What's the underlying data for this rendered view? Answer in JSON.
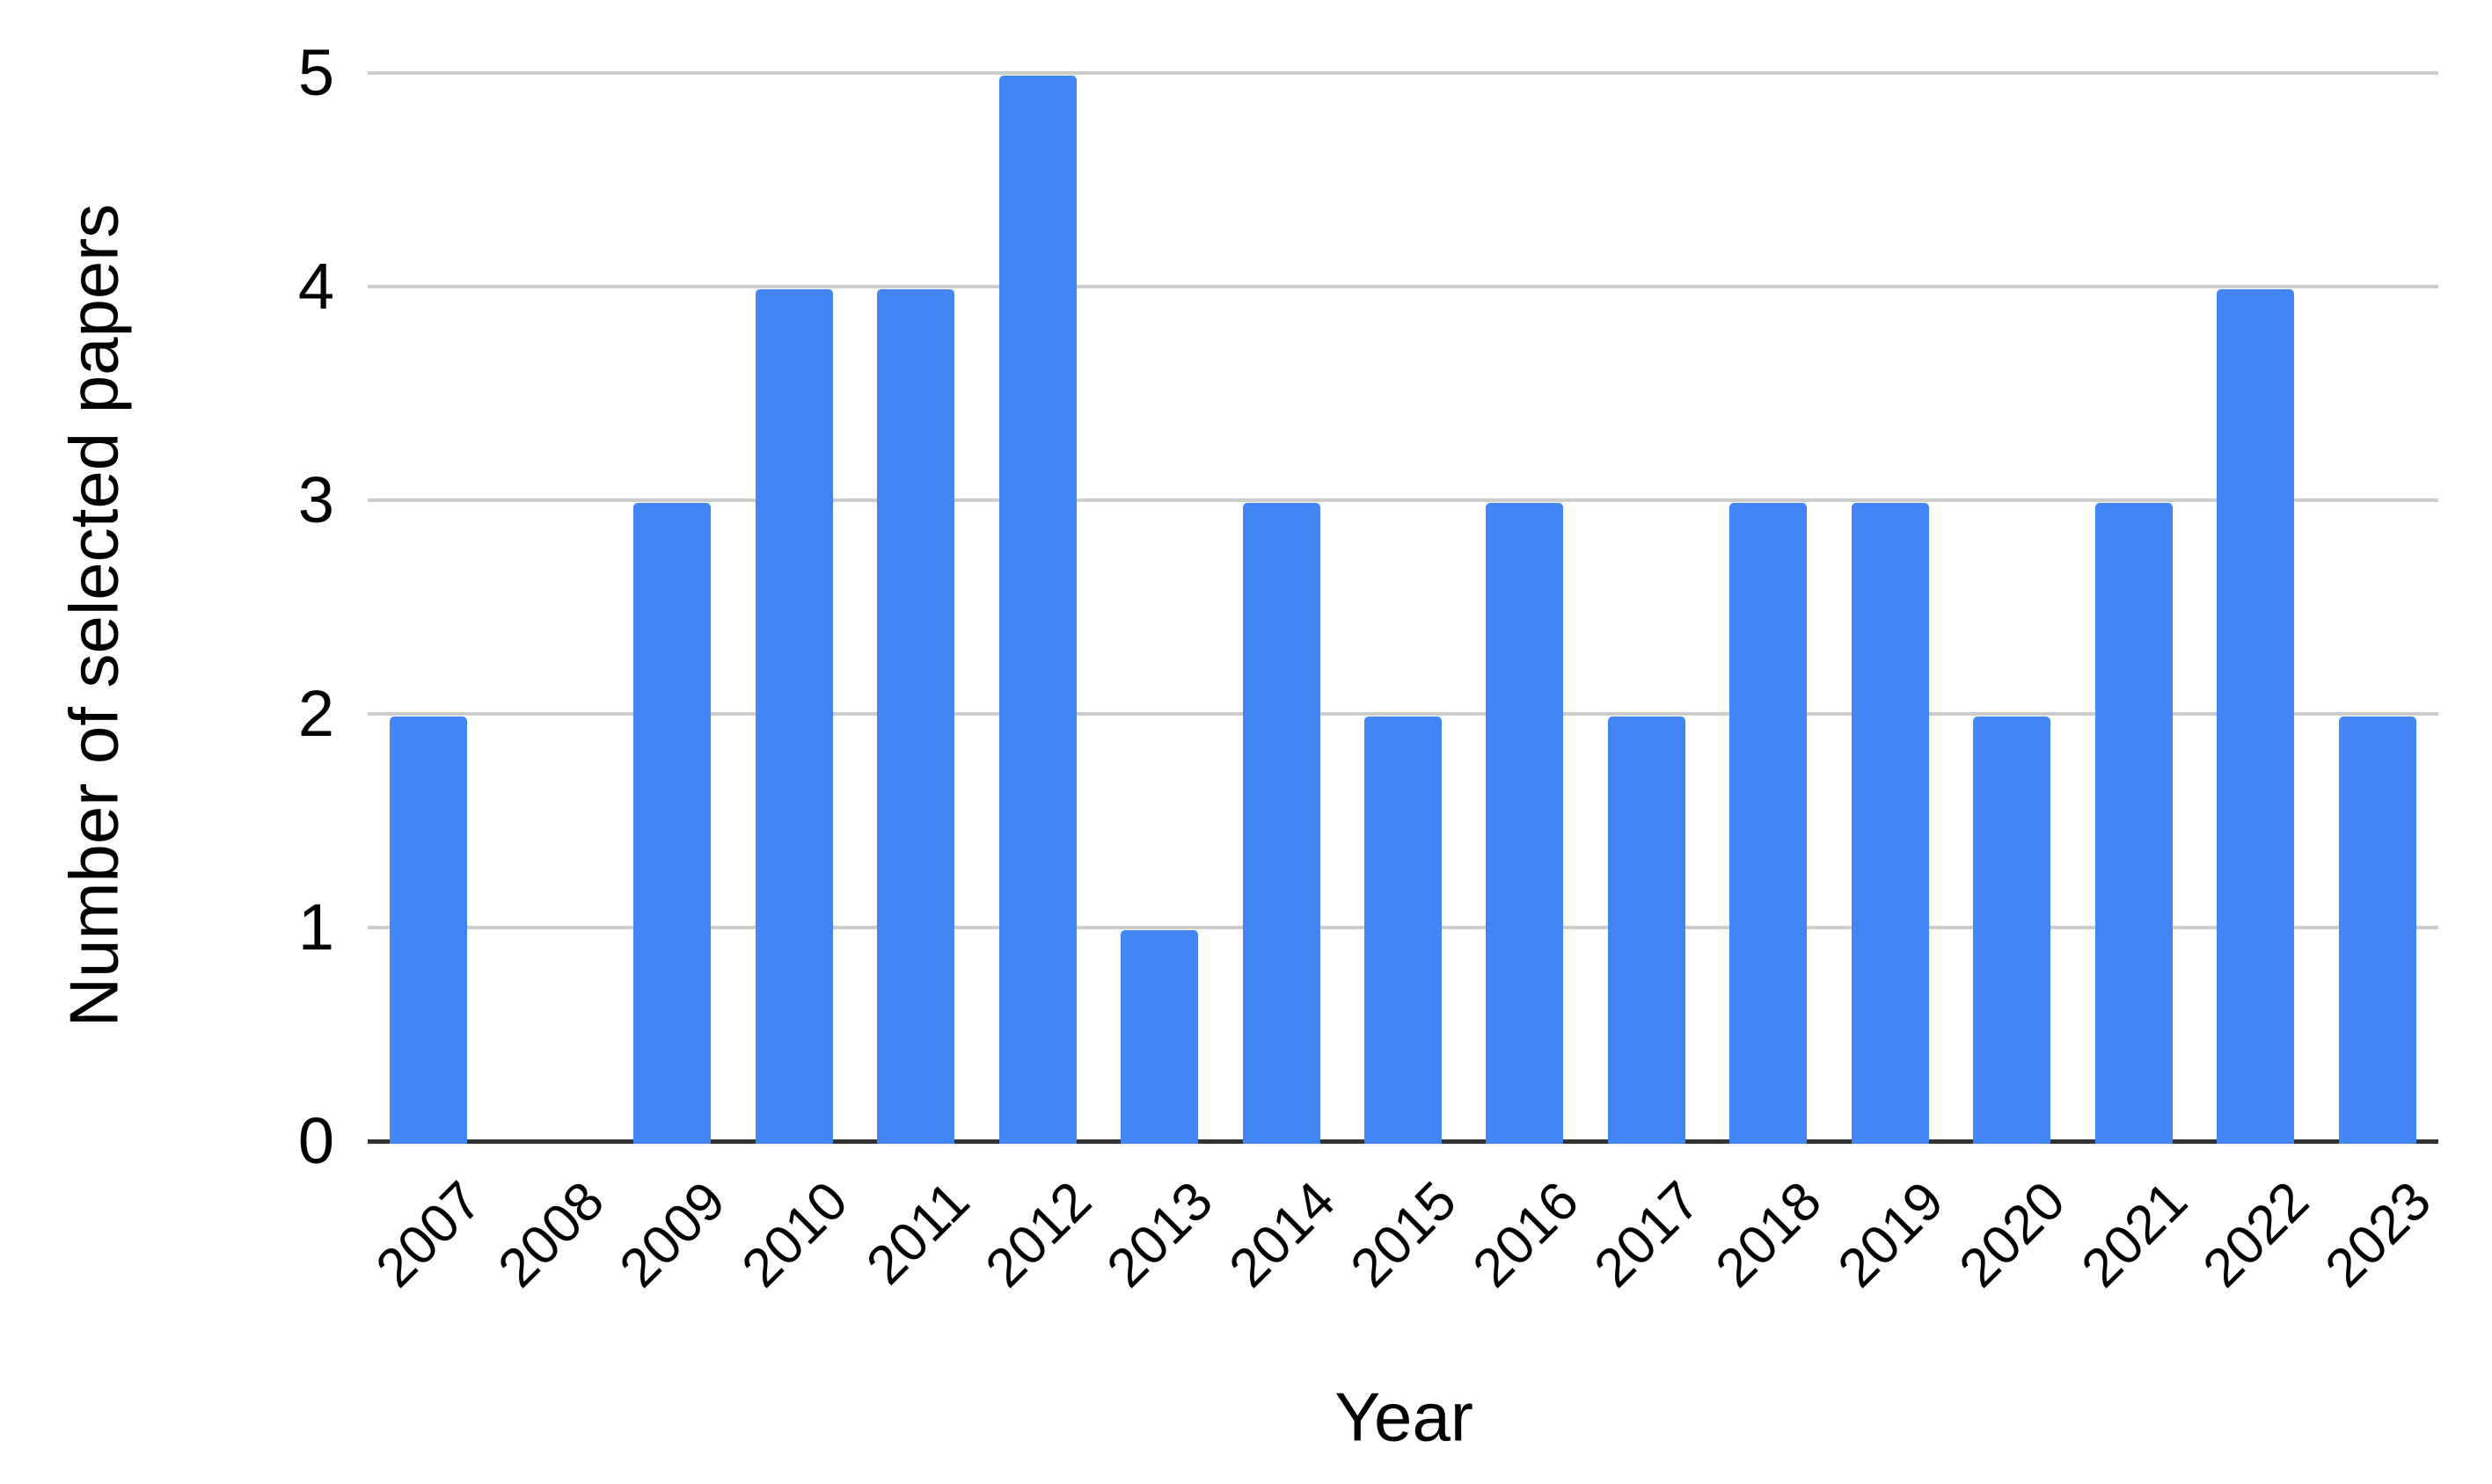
{
  "chart_data": {
    "type": "bar",
    "title": "",
    "xlabel": "Year",
    "ylabel": "Number of selected papers",
    "categories": [
      "2007",
      "2008",
      "2009",
      "2010",
      "2011",
      "2012",
      "2013",
      "2014",
      "2015",
      "2016",
      "2017",
      "2018",
      "2019",
      "2020",
      "2021",
      "2022",
      "2023"
    ],
    "values": [
      2,
      0,
      3,
      4,
      4,
      5,
      1,
      3,
      2,
      3,
      2,
      3,
      3,
      2,
      3,
      4,
      2
    ],
    "yticks": [
      0,
      1,
      2,
      3,
      4,
      5
    ],
    "ylim": [
      0,
      5
    ],
    "grid": "horizontal",
    "legend": "none",
    "colors": {
      "bar": "#4285F4",
      "gridline": "#cccccc",
      "axis_line": "#333333",
      "label": "#000000",
      "background": "#ffffff"
    }
  }
}
